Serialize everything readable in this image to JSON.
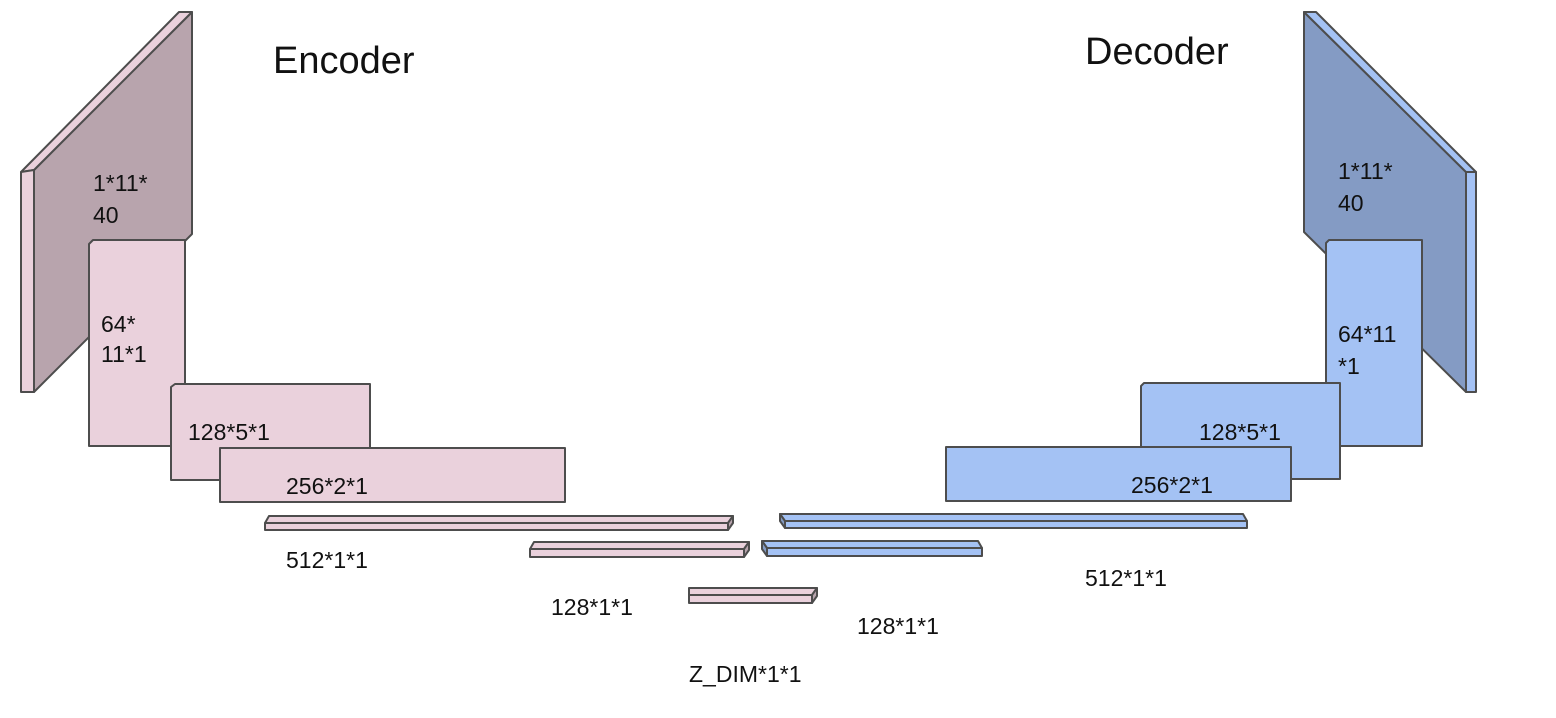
{
  "titles": {
    "encoder": "Encoder",
    "decoder": "Decoder"
  },
  "encoder": {
    "input": [
      "1*11*",
      "40"
    ],
    "conv1": [
      "64*",
      "11*1"
    ],
    "conv2": "128*5*1",
    "conv3": "256*2*1",
    "fc1": "512*1*1",
    "fc2": "128*1*1",
    "latent": "Z_DIM*1*1"
  },
  "decoder": {
    "output": [
      "1*11*",
      "40"
    ],
    "conv1": [
      "64*11",
      "*1"
    ],
    "conv2": "128*5*1",
    "conv3": "256*2*1",
    "fc1": "512*1*1",
    "fc2": "128*1*1"
  },
  "colors": {
    "encoder_face": "#ead1dc",
    "encoder_side": "#b8a4ad",
    "decoder_face": "#a4c2f4",
    "decoder_side": "#849bc4",
    "outline": "#4d4d4d",
    "text": "#111111"
  }
}
